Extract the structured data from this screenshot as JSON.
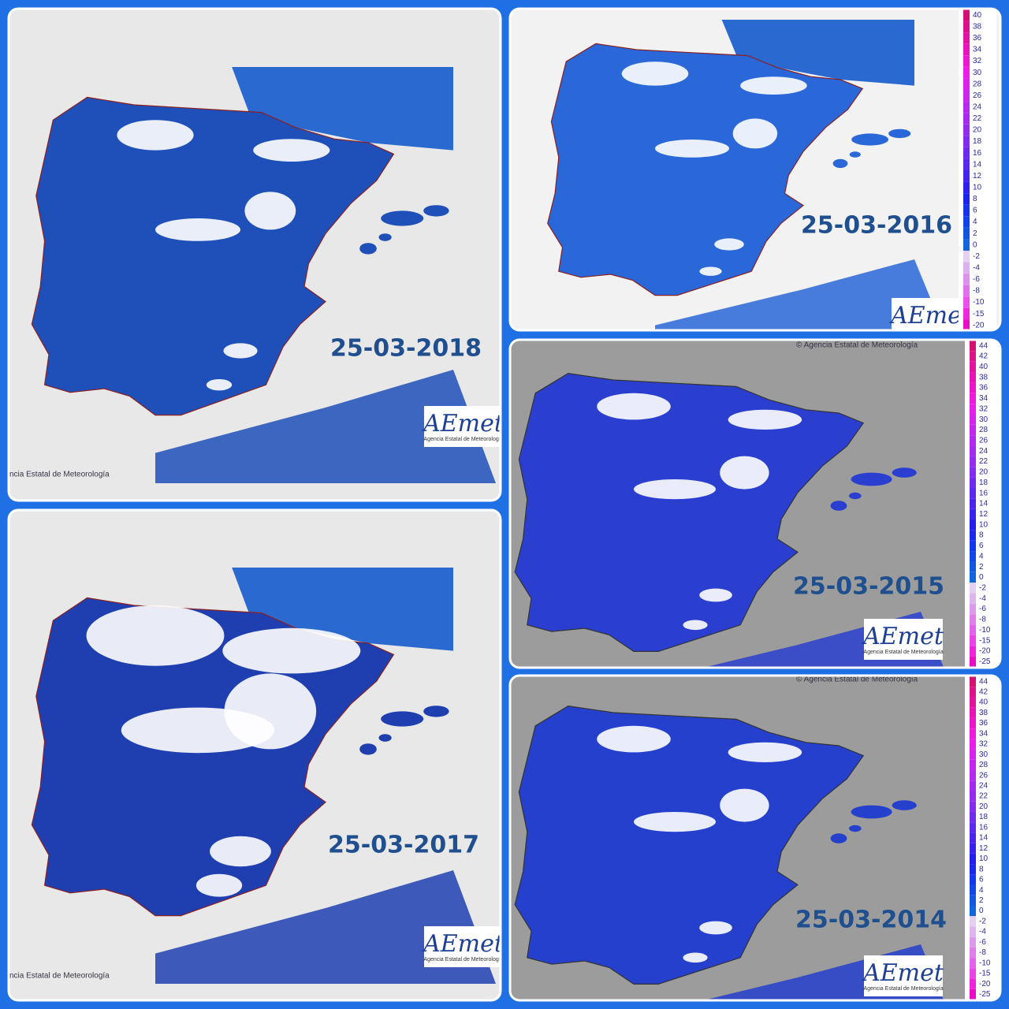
{
  "panels": [
    {
      "date": "25-03-2018",
      "credit": "ncia Estatal de Meteorología",
      "logo": "AEmet",
      "logo_caption": "Agencia Estatal de Meteorología"
    },
    {
      "date": "25-03-2016",
      "logo": "AEmet",
      "scale": [
        40,
        38,
        36,
        34,
        32,
        30,
        28,
        26,
        24,
        22,
        20,
        18,
        16,
        14,
        12,
        10,
        8,
        6,
        4,
        2,
        0,
        -2,
        -4,
        -6,
        -8,
        -10,
        -15,
        -20
      ]
    },
    {
      "date": "25-03-2015",
      "credit": "© Agencia Estatal de Meteorología",
      "logo": "AEmet",
      "logo_caption": "Agencia Estatal de Meteorología",
      "scale": [
        44,
        42,
        40,
        38,
        36,
        34,
        32,
        30,
        28,
        26,
        24,
        22,
        20,
        18,
        16,
        14,
        12,
        10,
        8,
        6,
        4,
        2,
        0,
        -2,
        -4,
        -6,
        -8,
        -10,
        -15,
        -20,
        -25
      ]
    },
    {
      "date": "25-03-2017",
      "credit": "ncia Estatal de Meteorología",
      "logo": "AEmet",
      "logo_caption": "Agencia Estatal de Meteorología"
    },
    {
      "date": "25-03-2014",
      "credit": "© Agencia Estatal de Meteorología",
      "logo": "AEmet",
      "logo_caption": "Agencia Estatal de Meteorología",
      "scale": [
        44,
        42,
        40,
        38,
        36,
        34,
        32,
        30,
        28,
        26,
        24,
        22,
        20,
        18,
        16,
        14,
        12,
        10,
        8,
        6,
        4,
        2,
        0,
        -2,
        -4,
        -6,
        -8,
        -10,
        -15,
        -20,
        -25
      ]
    }
  ]
}
